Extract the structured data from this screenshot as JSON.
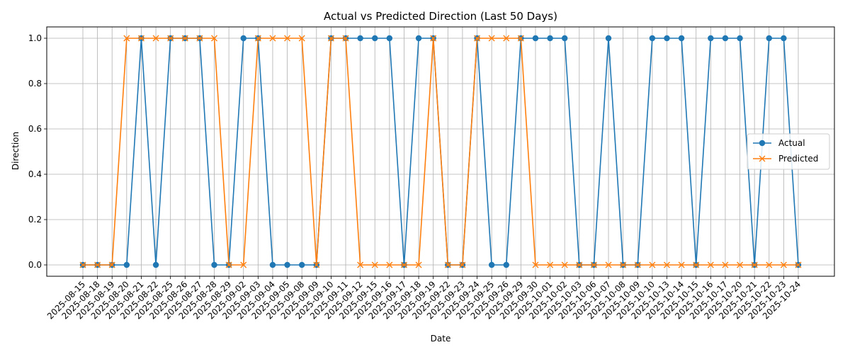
{
  "chart_data": {
    "type": "line",
    "title": "Actual vs Predicted Direction (Last 50 Days)",
    "xlabel": "Date",
    "ylabel": "Direction",
    "ylim": [
      -0.05,
      1.05
    ],
    "yticks": [
      "0.0",
      "0.2",
      "0.4",
      "0.6",
      "0.8",
      "1.0"
    ],
    "grid": true,
    "legend_position": "center-right",
    "categories": [
      "2025-08-15",
      "2025-08-18",
      "2025-08-19",
      "2025-08-20",
      "2025-08-21",
      "2025-08-22",
      "2025-08-25",
      "2025-08-26",
      "2025-08-27",
      "2025-08-28",
      "2025-08-29",
      "2025-09-02",
      "2025-09-03",
      "2025-09-04",
      "2025-09-05",
      "2025-09-08",
      "2025-09-09",
      "2025-09-10",
      "2025-09-11",
      "2025-09-12",
      "2025-09-15",
      "2025-09-16",
      "2025-09-17",
      "2025-09-18",
      "2025-09-19",
      "2025-09-22",
      "2025-09-23",
      "2025-09-24",
      "2025-09-25",
      "2025-09-26",
      "2025-09-29",
      "2025-09-30",
      "2025-10-01",
      "2025-10-02",
      "2025-10-03",
      "2025-10-06",
      "2025-10-07",
      "2025-10-08",
      "2025-10-09",
      "2025-10-10",
      "2025-10-13",
      "2025-10-14",
      "2025-10-15",
      "2025-10-16",
      "2025-10-17",
      "2025-10-20",
      "2025-10-21",
      "2025-10-22",
      "2025-10-23",
      "2025-10-24"
    ],
    "series": [
      {
        "name": "Actual",
        "color": "#1f77b4",
        "marker": "circle",
        "values": [
          0,
          0,
          0,
          0,
          1,
          0,
          1,
          1,
          1,
          0,
          0,
          1,
          1,
          0,
          0,
          0,
          0,
          1,
          1,
          1,
          1,
          1,
          0,
          1,
          1,
          0,
          0,
          1,
          0,
          0,
          1,
          1,
          1,
          1,
          0,
          0,
          1,
          0,
          0,
          1,
          1,
          1,
          0,
          1,
          1,
          1,
          0,
          1,
          1,
          0
        ]
      },
      {
        "name": "Predicted",
        "color": "#ff7f0e",
        "marker": "x",
        "values": [
          0,
          0,
          0,
          1,
          1,
          1,
          1,
          1,
          1,
          1,
          0,
          0,
          1,
          1,
          1,
          1,
          0,
          1,
          1,
          0,
          0,
          0,
          0,
          0,
          1,
          0,
          0,
          1,
          1,
          1,
          1,
          0,
          0,
          0,
          0,
          0,
          0,
          0,
          0,
          0,
          0,
          0,
          0,
          0,
          0,
          0,
          0,
          0,
          0,
          0
        ]
      }
    ]
  }
}
